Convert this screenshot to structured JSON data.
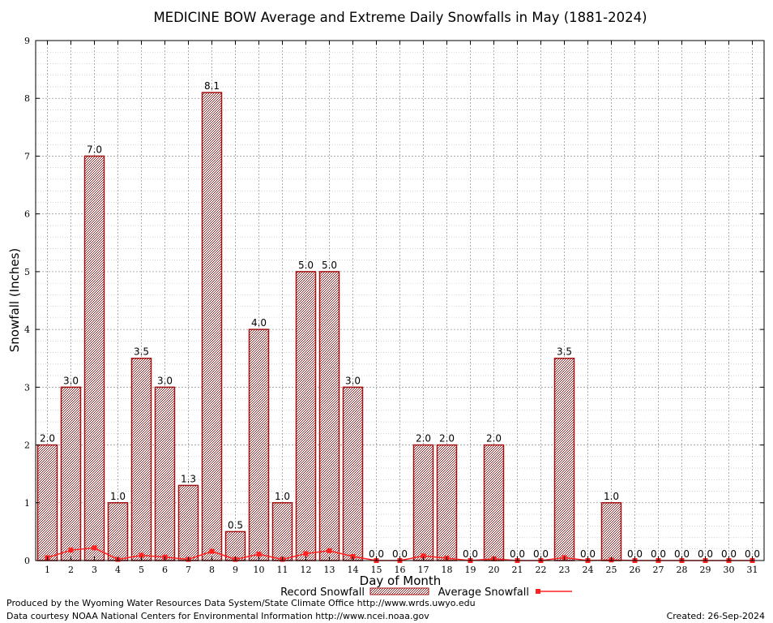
{
  "chart_data": {
    "type": "bar",
    "title": "MEDICINE BOW Average and Extreme Daily Snowfalls in May (1881-2024)",
    "xlabel": "Day of Month",
    "ylabel": "Snowfall (Inches)",
    "ylim": [
      0,
      9
    ],
    "yticks": [
      "0",
      "1",
      "2",
      "3",
      "4",
      "5",
      "6",
      "7",
      "8",
      "9"
    ],
    "grid": true,
    "legend_position": "bottom-center",
    "categories": [
      "1",
      "2",
      "3",
      "4",
      "5",
      "6",
      "7",
      "8",
      "9",
      "10",
      "11",
      "12",
      "13",
      "14",
      "15",
      "16",
      "17",
      "18",
      "19",
      "20",
      "21",
      "22",
      "23",
      "24",
      "25",
      "26",
      "27",
      "28",
      "29",
      "30",
      "31"
    ],
    "series": [
      {
        "name": "Record Snowfall",
        "type": "bar",
        "color": "#a01010",
        "values": [
          2.0,
          3.0,
          7.0,
          1.0,
          3.5,
          3.0,
          1.3,
          8.1,
          0.5,
          4.0,
          1.0,
          5.0,
          5.0,
          3.0,
          0.0,
          0.0,
          2.0,
          2.0,
          0.0,
          2.0,
          0.0,
          0.0,
          3.5,
          0.0,
          1.0,
          0.0,
          0.0,
          0.0,
          0.0,
          0.0,
          0.0
        ],
        "labels": [
          "2.0",
          "3.0",
          "7.0",
          "1.0",
          "3.5",
          "3.0",
          "1.3",
          "8.1",
          "0.5",
          "4.0",
          "1.0",
          "5.0",
          "5.0",
          "3.0",
          "0.0",
          "0.0",
          "2.0",
          "2.0",
          "0.0",
          "2.0",
          "0.0",
          "0.0",
          "3.5",
          "0.0",
          "1.0",
          "0.0",
          "0.0",
          "0.0",
          "0.0",
          "0.0",
          "0.0"
        ]
      },
      {
        "name": "Average Snowfall",
        "type": "line",
        "color": "#ff2020",
        "values": [
          0.05,
          0.18,
          0.22,
          0.02,
          0.09,
          0.06,
          0.02,
          0.16,
          0.02,
          0.11,
          0.02,
          0.12,
          0.17,
          0.07,
          0.0,
          0.0,
          0.08,
          0.04,
          0.0,
          0.03,
          0.0,
          0.0,
          0.05,
          0.0,
          0.01,
          0.0,
          0.0,
          0.0,
          0.0,
          0.0,
          0.0
        ]
      }
    ]
  },
  "footer": {
    "produced_by": "Produced by the Wyoming Water Resources Data System/State Climate Office http://www.wrds.uwyo.edu",
    "data_courtesy": "Data courtesy NOAA National Centers for Environmental Information http://www.ncei.noaa.gov",
    "created": "Created: 26-Sep-2024"
  }
}
